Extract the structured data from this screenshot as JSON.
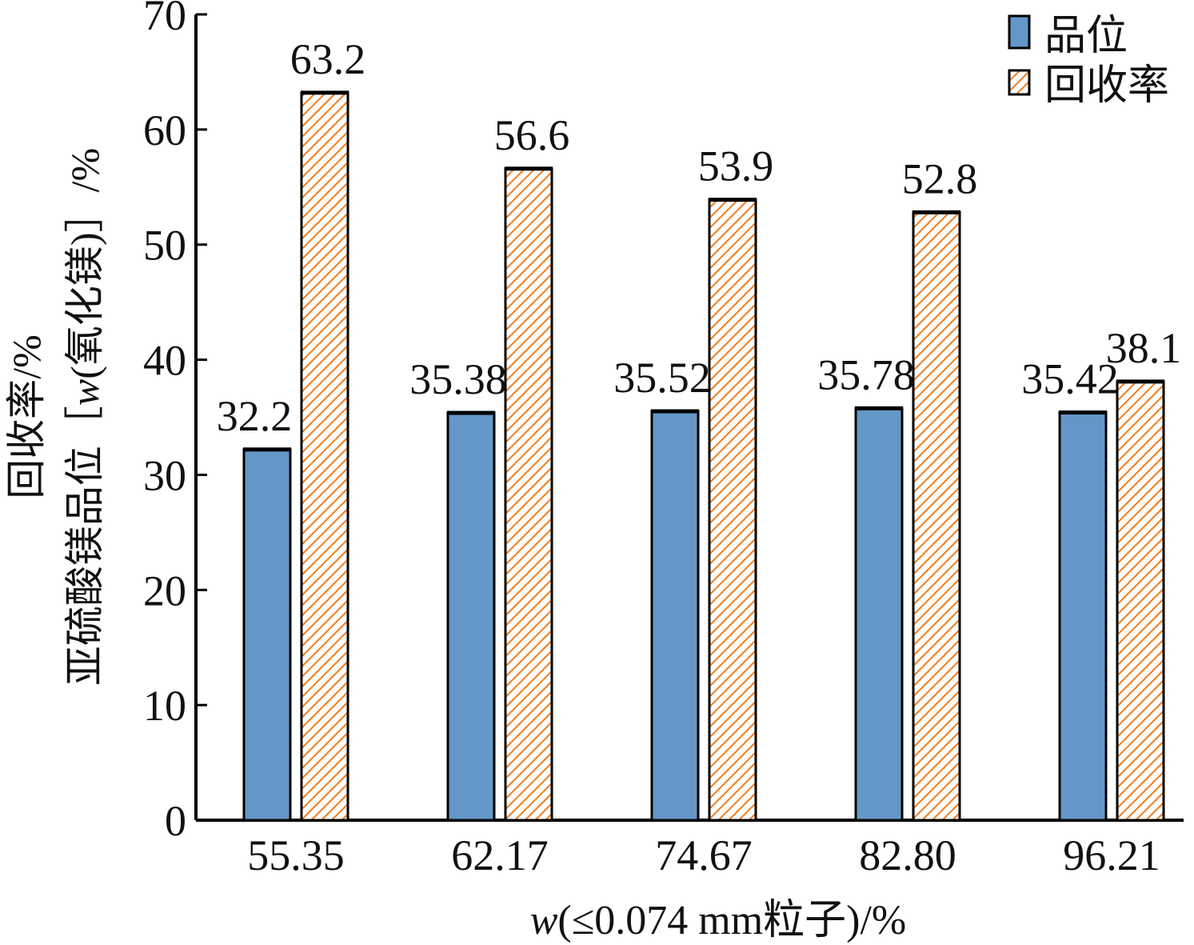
{
  "chart_data": {
    "type": "bar",
    "categories": [
      "55.35",
      "62.17",
      "74.67",
      "82.80",
      "96.21"
    ],
    "series": [
      {
        "name": "品位",
        "values": [
          32.2,
          35.38,
          35.52,
          35.78,
          35.42
        ],
        "labels": [
          "32.2",
          "35.38",
          "35.52",
          "35.78",
          "35.42"
        ],
        "color": "#6497c8",
        "fill": "solid"
      },
      {
        "name": "回收率",
        "values": [
          63.2,
          56.6,
          53.9,
          52.8,
          38.1
        ],
        "labels": [
          "63.2",
          "56.6",
          "53.9",
          "52.8",
          "38.1"
        ],
        "color": "#f07d1e",
        "fill": "hatch"
      }
    ],
    "title": "",
    "xlabel": {
      "var": "w",
      "rest": "(≤0.074 mm粒子)/%"
    },
    "ylabel": {
      "line1": "回收率/%",
      "line2_pre": "亚硫酸镁品位［",
      "line2_var": "w",
      "line2_post": "(氧化镁)］/%"
    },
    "ylim": [
      0,
      70
    ],
    "yticks": [
      "0",
      "10",
      "20",
      "30",
      "40",
      "50",
      "60",
      "70"
    ],
    "grid": false,
    "legend_position": "top-right"
  }
}
